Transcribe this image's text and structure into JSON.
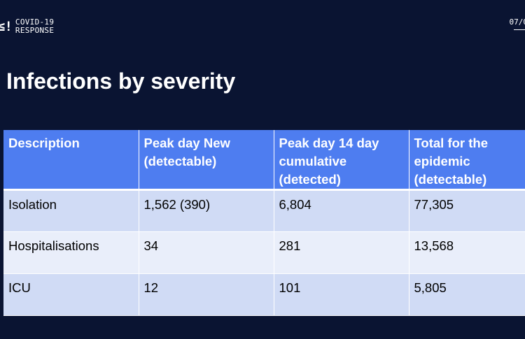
{
  "brand": {
    "mark": "≤!",
    "line1": "COVID-19",
    "line2": "RESPONSE"
  },
  "slide_number": "07/0",
  "title": "Infections by severity",
  "table": {
    "headers": [
      "Description",
      "Peak day New (detectable)",
      "Peak day 14 day cumulative (detected)",
      "Total for the epidemic (detectable)"
    ],
    "rows": [
      [
        "Isolation",
        "1,562 (390)",
        "6,804",
        "77,305"
      ],
      [
        "Hospitalisations",
        "34",
        "281",
        "13,568"
      ],
      [
        "ICU",
        "12",
        "101",
        "5,805"
      ]
    ]
  },
  "colors": {
    "background": "#0a1432",
    "header": "#4e7df0",
    "row_odd": "#d0dbf5",
    "row_even": "#e9eefa"
  }
}
